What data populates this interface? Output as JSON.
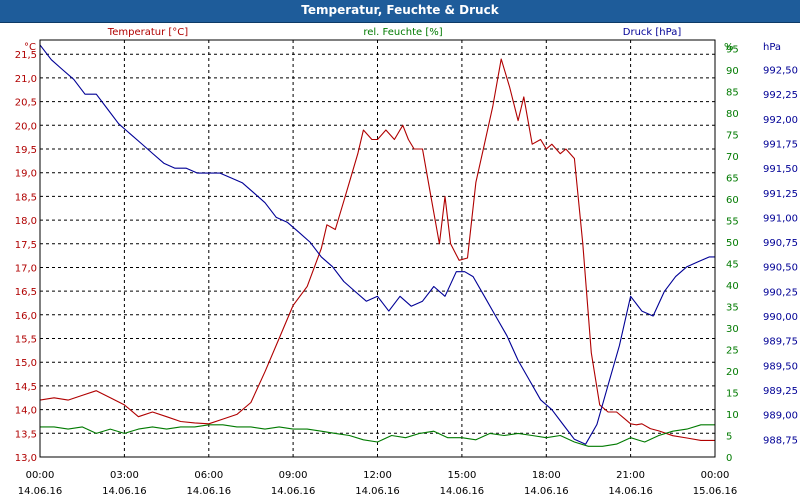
{
  "title": "Temperatur, Feuchte & Druck",
  "colors": {
    "temperature": "#b00000",
    "humidity": "#007a00",
    "pressure": "#000096",
    "grid": "#000000",
    "titlebar": "#1e5c9a"
  },
  "chart_data": {
    "type": "line",
    "title": "Temperatur, Feuchte & Druck",
    "x_ticks": [
      {
        "h": 0,
        "time": "00:00",
        "date": "14.06.16"
      },
      {
        "h": 3,
        "time": "03:00",
        "date": "14.06.16"
      },
      {
        "h": 6,
        "time": "06:00",
        "date": "14.06.16"
      },
      {
        "h": 9,
        "time": "09:00",
        "date": "14.06.16"
      },
      {
        "h": 12,
        "time": "12:00",
        "date": "14.06.16"
      },
      {
        "h": 15,
        "time": "15:00",
        "date": "14.06.16"
      },
      {
        "h": 18,
        "time": "18:00",
        "date": "14.06.16"
      },
      {
        "h": 21,
        "time": "21:00",
        "date": "14.06.16"
      },
      {
        "h": 24,
        "time": "00:00",
        "date": "15.06.16"
      }
    ],
    "x_range_hours": [
      0,
      24
    ],
    "axes": {
      "temperature": {
        "label": "Temperatur [°C]",
        "unit": "°C",
        "range": [
          13.0,
          21.8
        ],
        "ticks": [
          "13,0",
          "13,5",
          "14,0",
          "14,5",
          "15,0",
          "15,5",
          "16,0",
          "16,5",
          "17,0",
          "17,5",
          "18,0",
          "18,5",
          "19,0",
          "19,5",
          "20,0",
          "20,5",
          "21,0",
          "21,5"
        ],
        "tick_values": [
          13.0,
          13.5,
          14.0,
          14.5,
          15.0,
          15.5,
          16.0,
          16.5,
          17.0,
          17.5,
          18.0,
          18.5,
          19.0,
          19.5,
          20.0,
          20.5,
          21.0,
          21.5
        ]
      },
      "humidity": {
        "label": "rel. Feuchte [%]",
        "unit": "%",
        "range": [
          0,
          97
        ],
        "ticks": [
          "0",
          "5",
          "10",
          "15",
          "20",
          "25",
          "30",
          "35",
          "40",
          "45",
          "50",
          "55",
          "60",
          "65",
          "70",
          "75",
          "80",
          "85",
          "90",
          "95"
        ],
        "tick_values": [
          0,
          5,
          10,
          15,
          20,
          25,
          30,
          35,
          40,
          45,
          50,
          55,
          60,
          65,
          70,
          75,
          80,
          85,
          90,
          95
        ]
      },
      "pressure": {
        "label": "Druck [hPa]",
        "unit": "hPa",
        "range": [
          988.57,
          992.8
        ],
        "ticks": [
          "988,75",
          "989,00",
          "989,25",
          "989,50",
          "989,75",
          "990,00",
          "990,25",
          "990,50",
          "990,75",
          "991,00",
          "991,25",
          "991,50",
          "991,75",
          "992,00",
          "992,25",
          "992,50"
        ],
        "tick_values": [
          988.75,
          989.0,
          989.25,
          989.5,
          989.75,
          990.0,
          990.25,
          990.5,
          990.75,
          991.0,
          991.25,
          991.5,
          991.75,
          992.0,
          992.25,
          992.5
        ]
      }
    },
    "series": [
      {
        "name": "Temperatur",
        "axis": "temperature",
        "color_key": "temperature",
        "x": [
          0,
          0.5,
          1,
          1.5,
          2,
          2.5,
          3,
          3.5,
          4,
          4.5,
          5,
          5.5,
          6,
          6.5,
          7,
          7.5,
          8,
          8.5,
          9,
          9.5,
          10,
          10.2,
          10.5,
          10.8,
          11,
          11.3,
          11.5,
          11.8,
          12,
          12.3,
          12.6,
          12.9,
          13.1,
          13.3,
          13.6,
          13.9,
          14.2,
          14.4,
          14.6,
          14.9,
          15.2,
          15.5,
          15.8,
          16.1,
          16.4,
          16.7,
          17,
          17.2,
          17.5,
          17.8,
          18,
          18.2,
          18.5,
          18.7,
          19,
          19.3,
          19.6,
          19.9,
          20.2,
          20.5,
          20.8,
          21,
          21.2,
          21.4,
          21.7,
          22,
          22.5,
          23,
          23.5,
          24
        ],
        "values": [
          14.2,
          14.25,
          14.2,
          14.3,
          14.4,
          14.25,
          14.1,
          13.85,
          13.95,
          13.85,
          13.75,
          13.72,
          13.7,
          13.8,
          13.9,
          14.15,
          14.8,
          15.5,
          16.2,
          16.6,
          17.4,
          17.9,
          17.8,
          18.4,
          18.8,
          19.4,
          19.9,
          19.7,
          19.7,
          19.9,
          19.7,
          20.0,
          19.7,
          19.5,
          19.5,
          18.5,
          17.5,
          18.5,
          17.5,
          17.15,
          17.2,
          18.8,
          19.6,
          20.4,
          21.4,
          20.8,
          20.1,
          20.6,
          19.6,
          19.7,
          19.5,
          19.6,
          19.4,
          19.5,
          19.3,
          17.5,
          15.2,
          14.1,
          13.95,
          13.95,
          13.8,
          13.7,
          13.68,
          13.7,
          13.6,
          13.55,
          13.45,
          13.4,
          13.35,
          13.35
        ]
      },
      {
        "name": "rel. Feuchte",
        "axis": "humidity",
        "color_key": "humidity",
        "x": [
          0,
          0.5,
          1,
          1.5,
          2,
          2.5,
          3,
          3.5,
          4,
          4.5,
          5,
          5.5,
          6,
          6.5,
          7,
          7.5,
          8,
          8.5,
          9,
          9.5,
          10,
          10.5,
          11,
          11.5,
          12,
          12.5,
          13,
          13.5,
          14,
          14.5,
          15,
          15.5,
          16,
          16.5,
          17,
          17.5,
          18,
          18.5,
          19,
          19.5,
          20,
          20.5,
          21,
          21.5,
          22,
          22.5,
          23,
          23.5,
          24
        ],
        "values": [
          7,
          7,
          6.5,
          7,
          5.5,
          6.5,
          5.5,
          6.5,
          7,
          6.5,
          7,
          7,
          7.5,
          7.5,
          7,
          7,
          6.5,
          7,
          6.5,
          6.5,
          6,
          5.5,
          5,
          4,
          3.5,
          5,
          4.5,
          5.5,
          6,
          4.5,
          4.5,
          4,
          5.5,
          5,
          5.5,
          5,
          4.5,
          5,
          3.5,
          2.5,
          2.5,
          3,
          4.5,
          3.5,
          5,
          6,
          6.5,
          7.5,
          7.5
        ]
      },
      {
        "name": "Druck",
        "axis": "pressure",
        "color_key": "pressure",
        "x": [
          0,
          0.4,
          0.8,
          1.2,
          1.6,
          2,
          2.4,
          2.8,
          3.2,
          3.6,
          4,
          4.4,
          4.8,
          5.2,
          5.6,
          6,
          6.4,
          6.8,
          7.2,
          7.6,
          8,
          8.4,
          8.8,
          9.2,
          9.6,
          10,
          10.4,
          10.8,
          11.2,
          11.6,
          12,
          12.4,
          12.8,
          13.2,
          13.6,
          14,
          14.4,
          14.8,
          15.1,
          15.4,
          15.8,
          16.2,
          16.6,
          17,
          17.4,
          17.8,
          18.2,
          18.6,
          19,
          19.4,
          19.8,
          20.2,
          20.6,
          21,
          21.4,
          21.8,
          22.2,
          22.6,
          23,
          23.4,
          23.8,
          24
        ],
        "values": [
          992.75,
          992.6,
          992.5,
          992.4,
          992.25,
          992.25,
          992.1,
          991.95,
          991.85,
          991.75,
          991.65,
          991.55,
          991.5,
          991.5,
          991.45,
          991.45,
          991.45,
          991.4,
          991.35,
          991.25,
          991.15,
          991.0,
          990.95,
          990.85,
          990.75,
          990.6,
          990.5,
          990.35,
          990.25,
          990.15,
          990.2,
          990.05,
          990.2,
          990.1,
          990.15,
          990.3,
          990.2,
          990.45,
          990.45,
          990.4,
          990.2,
          990.0,
          989.8,
          989.55,
          989.35,
          989.15,
          989.05,
          988.9,
          988.75,
          988.7,
          988.9,
          989.3,
          989.7,
          990.2,
          990.05,
          990.0,
          990.25,
          990.4,
          990.5,
          990.55,
          990.6,
          990.6
        ]
      }
    ]
  }
}
